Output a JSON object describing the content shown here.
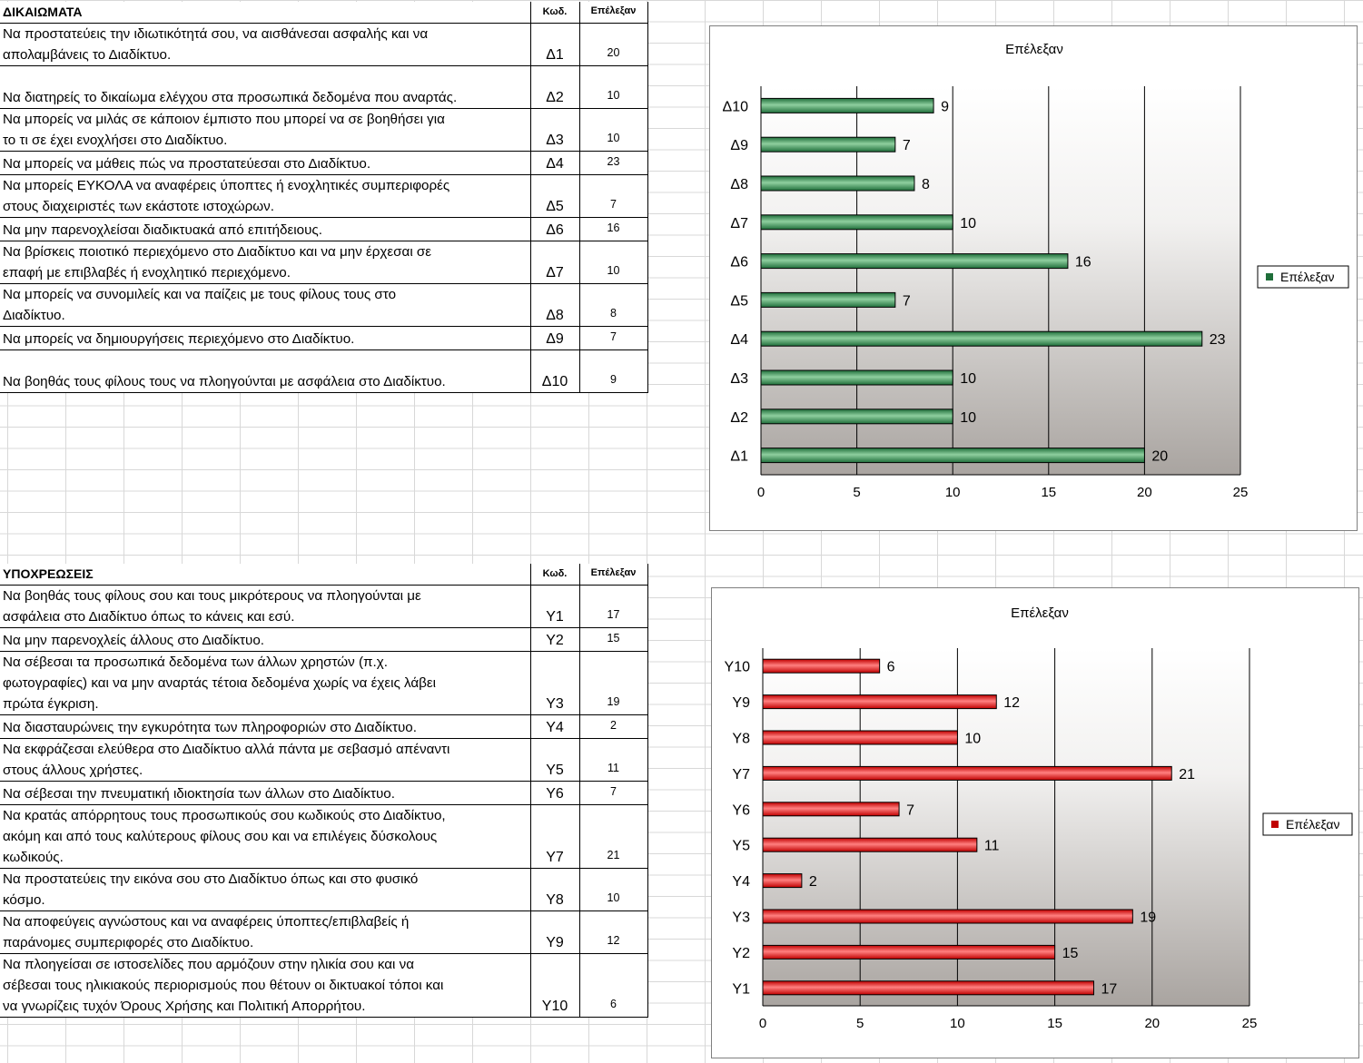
{
  "rights": {
    "title": "ΔΙΚΑΙΩΜΑΤΑ",
    "col_code": "Κωδ.",
    "col_count": "Επέλεξαν",
    "rows": [
      {
        "lines": [
          "Να προστατεύεις την ιδιωτικότητά σου, να αισθάνεσαι ασφαλής και να",
          "απολαμβάνεις το Διαδίκτυο."
        ],
        "code": "Δ1",
        "count": "20"
      },
      {
        "lines": [
          "",
          "Να διατηρείς το δικαίωμα ελέγχου στα προσωπικά δεδομένα που αναρτάς."
        ],
        "code": "Δ2",
        "count": "10"
      },
      {
        "lines": [
          "Να μπορείς να μιλάς σε κάποιον έμπιστο που μπορεί να σε βοηθήσει για",
          "το τι σε έχει ενοχλήσει στο Διαδίκτυο."
        ],
        "code": "Δ3",
        "count": "10"
      },
      {
        "lines": [
          "Να μπορείς να μάθεις πώς να προστατεύεσαι στο Διαδίκτυο."
        ],
        "code": "Δ4",
        "count": "23"
      },
      {
        "lines": [
          "Να μπορείς ΕΥΚΟΛΑ να αναφέρεις ύποπτες ή ενοχλητικές συμπεριφορές",
          "στους διαχειριστές των εκάστοτε ιστοχώρων."
        ],
        "code": "Δ5",
        "count": "7"
      },
      {
        "lines": [
          "Να μην παρενοχλείσαι διαδικτυακά από επιτήδειους."
        ],
        "code": "Δ6",
        "count": "16"
      },
      {
        "lines": [
          "Να βρίσκεις ποιοτικό περιεχόμενο στο Διαδίκτυο και να μην έρχεσαι σε",
          "επαφή με επιβλαβές ή ενοχλητικό περιεχόμενο."
        ],
        "code": "Δ7",
        "count": "10"
      },
      {
        "lines": [
          "Να μπορείς να συνομιλείς και να παίζεις με τους φίλους τους στο",
          "Διαδίκτυο."
        ],
        "code": "Δ8",
        "count": "8"
      },
      {
        "lines": [
          "Να μπορείς να δημιουργήσεις περιεχόμενο στο Διαδίκτυο."
        ],
        "code": "Δ9",
        "count": "7"
      },
      {
        "lines": [
          "",
          "Να βοηθάς τους φίλους τους να πλοηγούνται με ασφάλεια στο Διαδίκτυο."
        ],
        "code": "Δ10",
        "count": "9"
      }
    ]
  },
  "obligations": {
    "title": "ΥΠΟΧΡΕΩΣΕΙΣ",
    "col_code": "Κωδ.",
    "col_count": "Επέλεξαν",
    "rows": [
      {
        "lines": [
          "Να βοηθάς τους φίλους σου και τους μικρότερους να πλοηγούνται με",
          "ασφάλεια στο Διαδίκτυο όπως το κάνεις και εσύ."
        ],
        "code": "Υ1",
        "count": "17"
      },
      {
        "lines": [
          "Να μην παρενοχλείς άλλους στο Διαδίκτυο."
        ],
        "code": "Υ2",
        "count": "15"
      },
      {
        "lines": [
          "Να σέβεσαι τα προσωπικά δεδομένα των άλλων χρηστών (π.χ.",
          "φωτογραφίες) και να μην αναρτάς τέτοια δεδομένα χωρίς να έχεις λάβει",
          "πρώτα έγκριση."
        ],
        "code": "Υ3",
        "count": "19"
      },
      {
        "lines": [
          "Να διασταυρώνεις την εγκυρότητα των πληροφοριών στο Διαδίκτυο."
        ],
        "code": "Υ4",
        "count": "2"
      },
      {
        "lines": [
          "Να εκφράζεσαι ελεύθερα στο Διαδίκτυο αλλά πάντα με σεβασμό απέναντι",
          "στους άλλους χρήστες."
        ],
        "code": "Υ5",
        "count": "11"
      },
      {
        "lines": [
          "Να σέβεσαι την πνευματική ιδιοκτησία των άλλων στο Διαδίκτυο."
        ],
        "code": "Υ6",
        "count": "7"
      },
      {
        "lines": [
          "Να κρατάς απόρρητους τους προσωπικούς σου κωδικούς στο Διαδίκτυο,",
          "ακόμη και από τους καλύτερους φίλους σου και να επιλέγεις δύσκολους",
          "κωδικούς."
        ],
        "code": "Υ7",
        "count": "21"
      },
      {
        "lines": [
          "Να προστατεύεις την εικόνα σου στο Διαδίκτυο όπως και στο φυσικό",
          "κόσμο."
        ],
        "code": "Υ8",
        "count": "10"
      },
      {
        "lines": [
          "Να αποφεύγεις αγνώστους και να αναφέρεις ύποπτες/επιβλαβείς ή",
          "παράνομες συμπεριφορές στο Διαδίκτυο."
        ],
        "code": "Υ9",
        "count": "12"
      },
      {
        "lines": [
          "Να πλοηγείσαι σε ιστοσελίδες που αρμόζουν στην ηλικία σου και να",
          "σέβεσαι τους ηλικιακούς περιορισμούς που θέτουν οι δικτυακοί τόποι και",
          "να γνωρίζεις τυχόν Όρους Χρήσης και Πολιτική Απορρήτου."
        ],
        "code": "Υ10",
        "count": "6"
      }
    ]
  },
  "chart_data": [
    {
      "type": "bar",
      "orientation": "horizontal",
      "title": "Επέλεξαν",
      "categories": [
        "Δ1",
        "Δ2",
        "Δ3",
        "Δ4",
        "Δ5",
        "Δ6",
        "Δ7",
        "Δ8",
        "Δ9",
        "Δ10"
      ],
      "series": [
        {
          "name": "Επέλεξαν",
          "values": [
            20,
            10,
            10,
            23,
            7,
            16,
            10,
            8,
            7,
            9
          ]
        }
      ],
      "xlim": [
        0,
        25
      ],
      "xticks": [
        "0",
        "5",
        "10",
        "15",
        "20",
        "25"
      ],
      "grid": true,
      "legend": "right",
      "color": "#1f6e3a",
      "color_light": "#8fcf9f"
    },
    {
      "type": "bar",
      "orientation": "horizontal",
      "title": "Επέλεξαν",
      "categories": [
        "Υ1",
        "Υ2",
        "Υ3",
        "Υ4",
        "Υ5",
        "Υ6",
        "Υ7",
        "Υ8",
        "Υ9",
        "Υ10"
      ],
      "series": [
        {
          "name": "Επέλεξαν",
          "values": [
            17,
            15,
            19,
            2,
            11,
            7,
            21,
            10,
            12,
            6
          ]
        }
      ],
      "xlim": [
        0,
        25
      ],
      "xticks": [
        "0",
        "5",
        "10",
        "15",
        "20",
        "25"
      ],
      "grid": true,
      "legend": "right",
      "color": "#c00000",
      "color_light": "#ff8080"
    }
  ]
}
